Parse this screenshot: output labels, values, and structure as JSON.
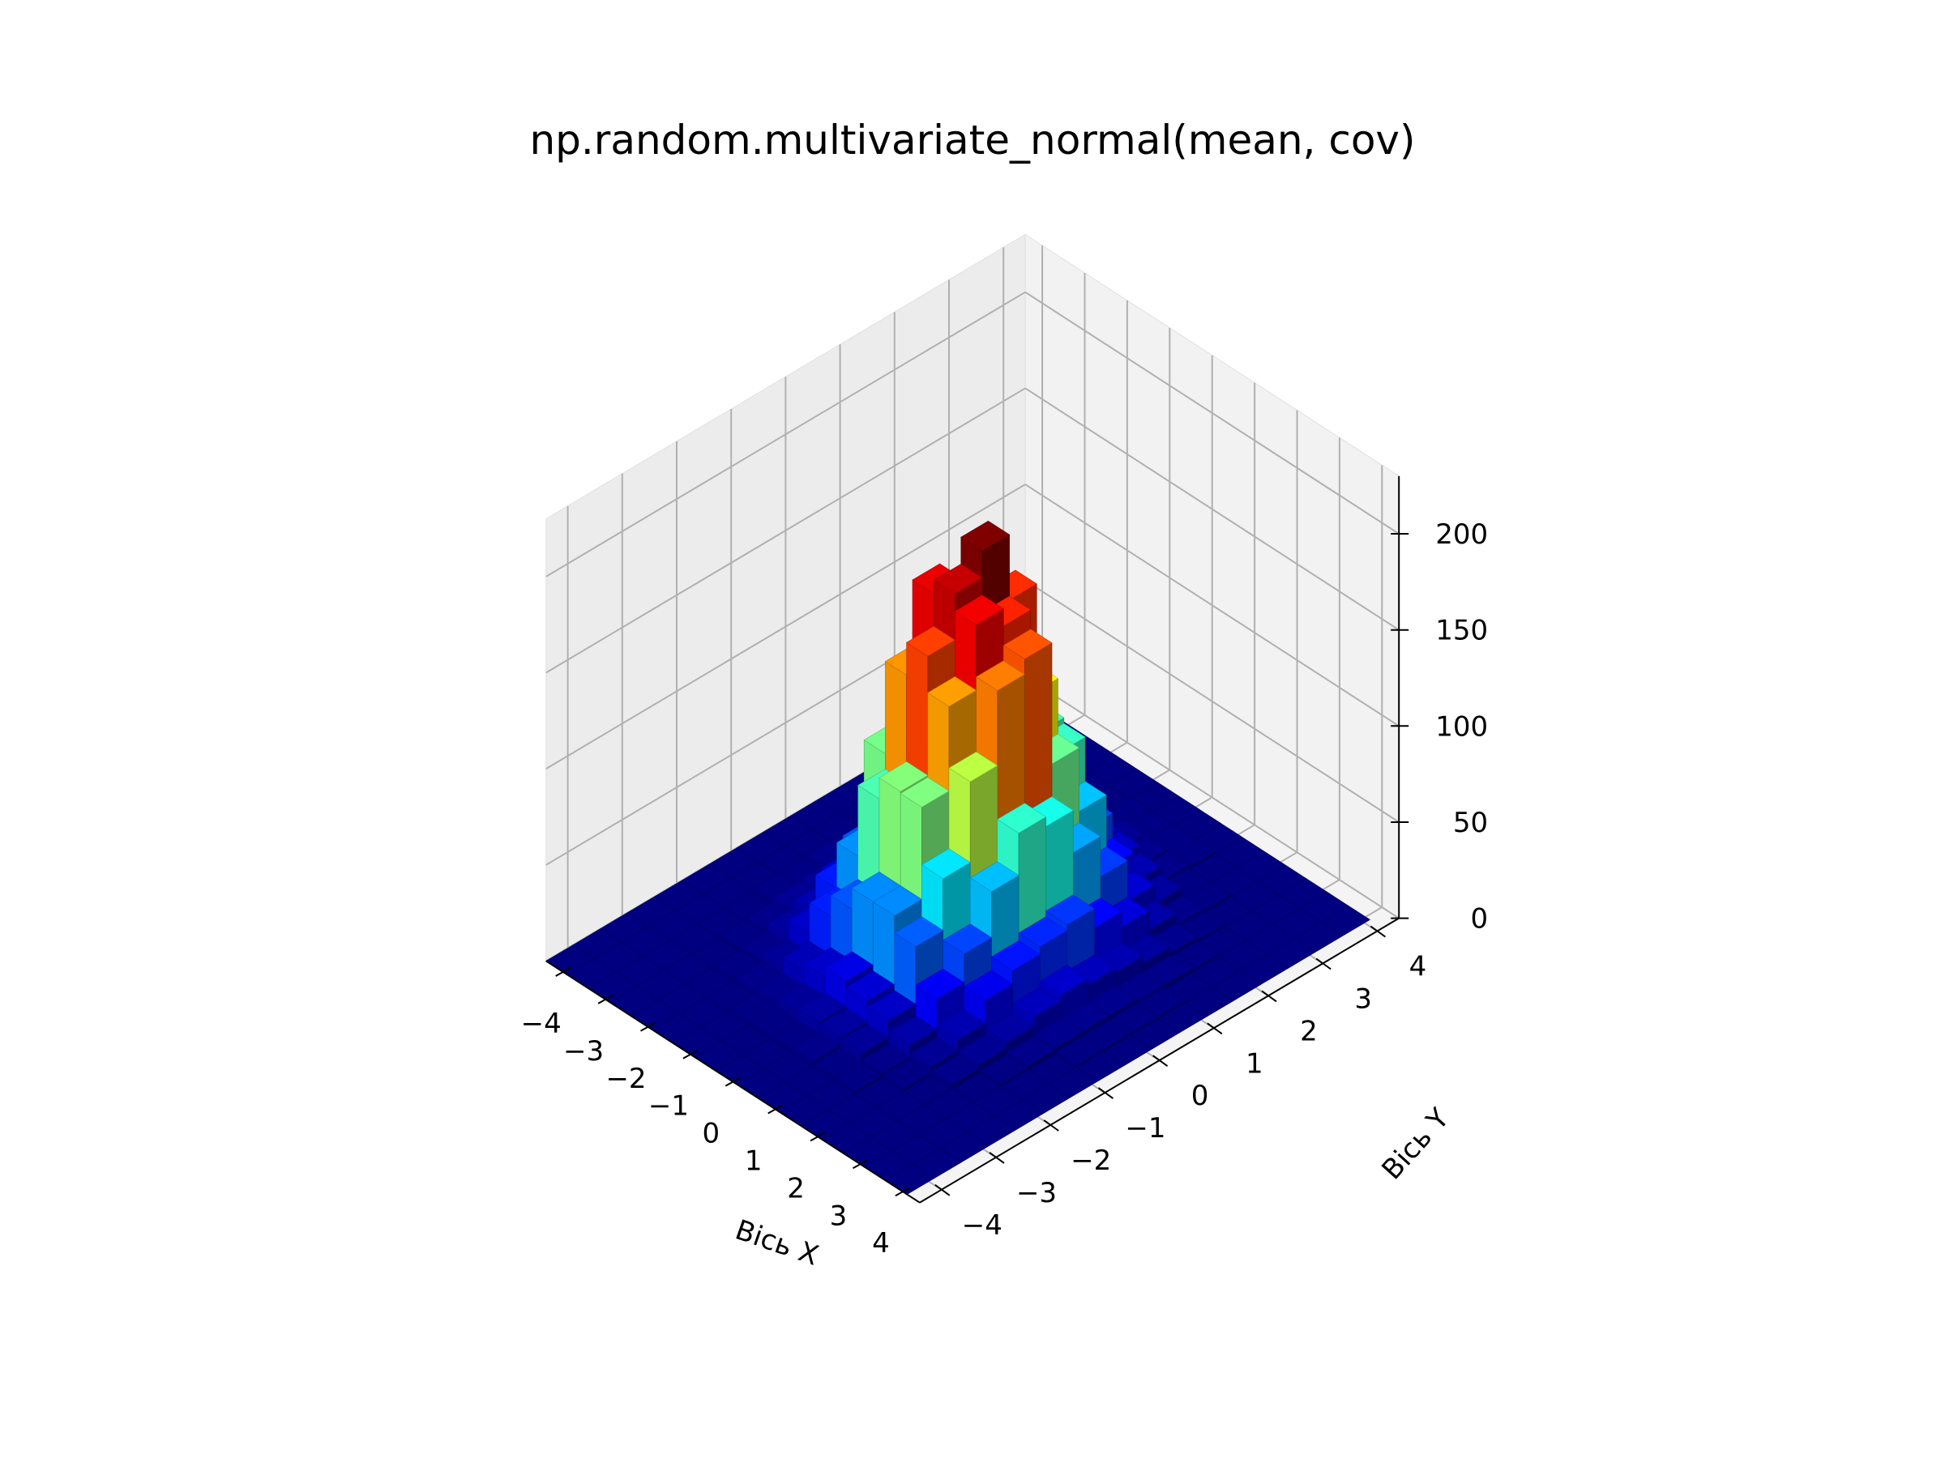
{
  "chart_data": {
    "type": "bar3d",
    "title": "np.random.multivariate_normal(mean, cov)",
    "xlabel": "Вісь X",
    "ylabel": "Вісь Y",
    "zlabel": "",
    "colormap": "jet",
    "xlim": [
      -4.4,
      4.4
    ],
    "ylim": [
      -4.4,
      4.4
    ],
    "zlim": [
      0,
      230
    ],
    "x_ticks": [
      -4,
      -3,
      -2,
      -1,
      0,
      1,
      2,
      3,
      4
    ],
    "y_ticks": [
      -4,
      -3,
      -2,
      -1,
      0,
      1,
      2,
      3,
      4
    ],
    "z_ticks": [
      0,
      50,
      100,
      150,
      200
    ],
    "x_tick_labels": [
      "−4",
      "−3",
      "−2",
      "−1",
      "0",
      "1",
      "2",
      "3",
      "4"
    ],
    "y_tick_labels": [
      "−4",
      "−3",
      "−2",
      "−1",
      "0",
      "1",
      "2",
      "3",
      "4"
    ],
    "z_tick_labels": [
      "0",
      "50",
      "100",
      "150",
      "200"
    ],
    "grid": true,
    "bins": {
      "x_edges": [
        -4.4,
        -3.9,
        -3.4,
        -2.9,
        -2.4,
        -1.9,
        -1.4,
        -0.9,
        -0.4,
        0.1,
        0.6,
        1.1,
        1.6,
        2.1,
        2.6,
        3.1,
        3.6,
        4.1
      ],
      "y_edges": [
        -4.4,
        -3.9,
        -3.4,
        -2.9,
        -2.4,
        -1.9,
        -1.4,
        -0.9,
        -0.4,
        0.1,
        0.6,
        1.1,
        1.6,
        2.1,
        2.6,
        3.1,
        3.6,
        4.1
      ],
      "peak_count": 215,
      "distribution": {
        "mean": [
          0,
          0
        ],
        "cov": [
          [
            1.0,
            0.0
          ],
          [
            0.0,
            1.0
          ]
        ]
      }
    }
  }
}
